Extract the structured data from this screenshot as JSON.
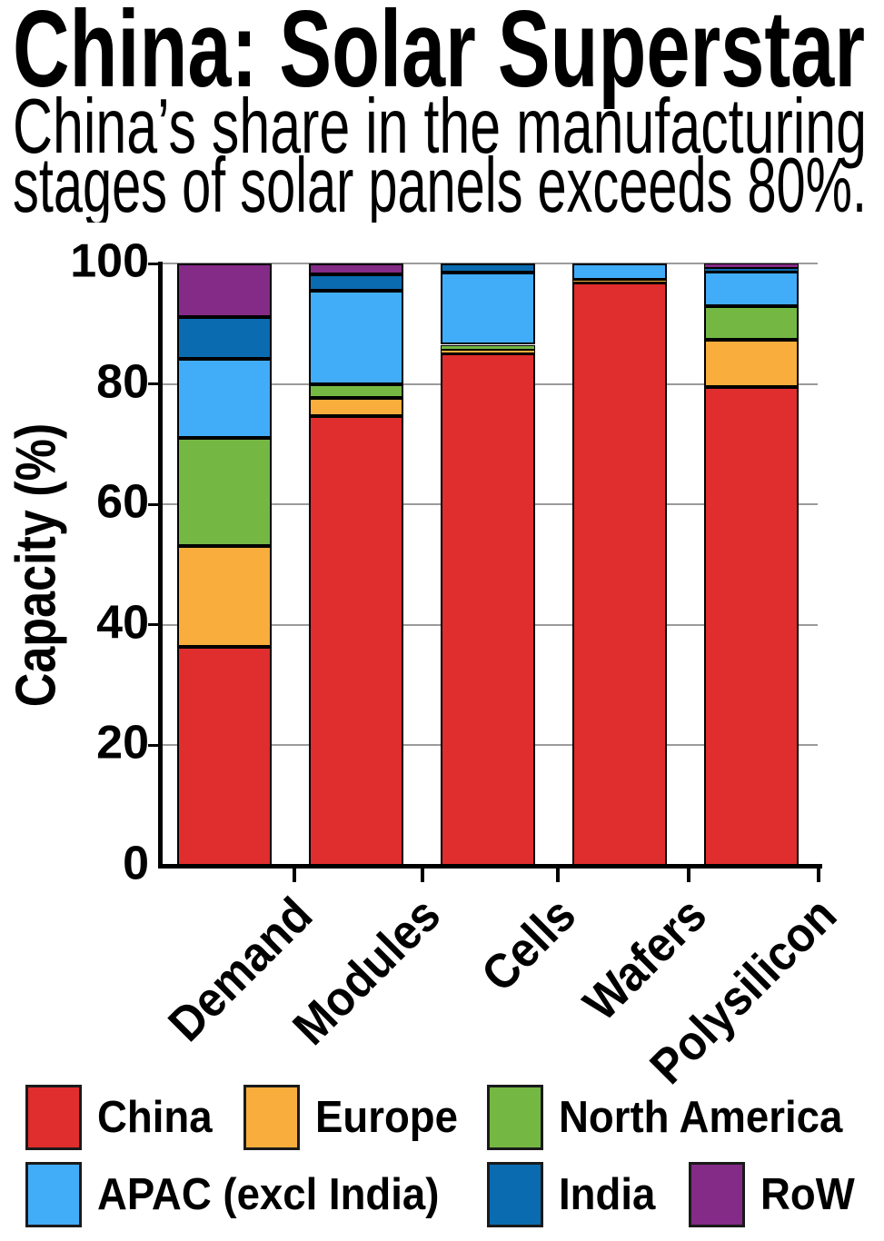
{
  "title": "China: Solar Superstar",
  "subtitle_lines": [
    "China’s share in the manufacturing",
    "stages of solar panels exceeds 80%."
  ],
  "chart_data": {
    "type": "bar",
    "stacked": true,
    "title": "China: Solar Superstar",
    "subtitle": "China’s share in the manufacturing stages of solar panels exceeds 80%.",
    "categories": [
      "Demand",
      "Modules",
      "Cells",
      "Wafers",
      "Polysilicon"
    ],
    "series": [
      {
        "name": "China",
        "color": "#e02d2d",
        "values": [
          36.4,
          74.7,
          85.0,
          96.9,
          79.5
        ]
      },
      {
        "name": "Europe",
        "color": "#f9ad3c",
        "values": [
          16.7,
          3.0,
          0.7,
          0.4,
          7.8
        ]
      },
      {
        "name": "North America",
        "color": "#74b843",
        "values": [
          18.0,
          2.2,
          0.8,
          0.0,
          5.6
        ]
      },
      {
        "name": "APAC (excl India)",
        "color": "#41acf8",
        "values": [
          13.1,
          15.6,
          12.0,
          2.7,
          5.8
        ]
      },
      {
        "name": "India",
        "color": "#0a6bb0",
        "values": [
          6.9,
          2.7,
          1.5,
          0.0,
          0.5
        ]
      },
      {
        "name": "RoW",
        "color": "#832b86",
        "values": [
          8.9,
          1.8,
          0.0,
          0.0,
          0.8
        ]
      }
    ],
    "xlabel": "",
    "ylabel": "Capacity (%)",
    "ylim": [
      0,
      100
    ],
    "yticks": [
      0,
      20,
      40,
      60,
      80,
      100
    ],
    "grid": true,
    "bar_edge_color": "#000000",
    "legend_position": "bottom"
  },
  "legend": {
    "rows": [
      [
        "China",
        "Europe",
        "North America"
      ],
      [
        "APAC (excl India)",
        "India",
        "RoW"
      ]
    ]
  }
}
